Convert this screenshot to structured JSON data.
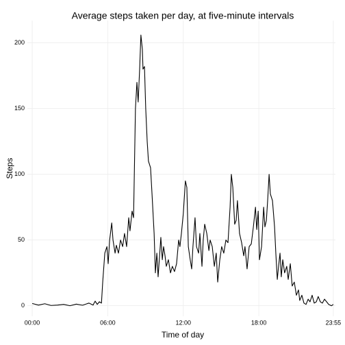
{
  "chart_data": {
    "type": "line",
    "title": "Average steps taken per day, at five-minute intervals",
    "xlabel": "Time of day",
    "ylabel": "Steps",
    "color": "#000000",
    "grid": true,
    "x": [
      0,
      30,
      60,
      90,
      120,
      150,
      180,
      210,
      240,
      270,
      290,
      300,
      310,
      320,
      330,
      336,
      346,
      356,
      362,
      369,
      379,
      385,
      395,
      401,
      411,
      421,
      431,
      440,
      450,
      460,
      466,
      476,
      483,
      492,
      499,
      505,
      512,
      518,
      525,
      528,
      535,
      541,
      548,
      554,
      564,
      571,
      581,
      587,
      594,
      600,
      607,
      613,
      620,
      626,
      633,
      639,
      649,
      659,
      668,
      678,
      688,
      698,
      704,
      711,
      720,
      730,
      737,
      744,
      753,
      760,
      766,
      776,
      783,
      793,
      799,
      809,
      815,
      822,
      832,
      842,
      848,
      858,
      868,
      877,
      884,
      894,
      903,
      913,
      923,
      933,
      943,
      949,
      956,
      965,
      972,
      978,
      988,
      998,
      1008,
      1014,
      1024,
      1034,
      1044,
      1054,
      1064,
      1070,
      1077,
      1083,
      1093,
      1103,
      1109,
      1116,
      1122,
      1129,
      1135,
      1145,
      1155,
      1161,
      1168,
      1174,
      1181,
      1187,
      1194,
      1203,
      1213,
      1220,
      1230,
      1239,
      1249,
      1259,
      1269,
      1275,
      1285,
      1295,
      1305,
      1315,
      1324,
      1334,
      1344,
      1354,
      1363,
      1373,
      1383,
      1393,
      1403,
      1413,
      1426,
      1435
    ],
    "y": [
      1.7,
      0.5,
      1.5,
      0.2,
      0.5,
      1,
      0,
      1.2,
      0.4,
      2,
      0.5,
      3.5,
      1,
      3,
      2,
      18,
      40,
      45,
      32,
      50,
      63,
      50,
      40,
      46,
      40,
      50,
      45,
      55,
      45,
      67,
      57,
      72,
      67,
      150,
      170,
      155,
      180,
      206,
      195,
      180,
      182,
      150,
      125,
      110,
      105,
      85,
      55,
      25,
      40,
      22,
      38,
      52,
      35,
      45,
      38,
      30,
      35,
      25,
      30,
      26,
      32,
      50,
      45,
      55,
      70,
      95,
      90,
      45,
      35,
      28,
      45,
      67,
      45,
      40,
      55,
      30,
      50,
      62,
      55,
      42,
      50,
      45,
      30,
      40,
      18,
      35,
      45,
      40,
      50,
      48,
      75,
      100,
      90,
      62,
      65,
      80,
      55,
      48,
      38,
      45,
      28,
      45,
      47,
      60,
      75,
      58,
      72,
      35,
      45,
      75,
      60,
      65,
      80,
      100,
      85,
      80,
      60,
      40,
      20,
      30,
      40,
      22,
      35,
      25,
      30,
      20,
      32,
      15,
      18,
      8,
      12,
      4,
      8,
      2,
      1,
      5,
      3,
      8,
      2,
      3,
      7,
      3,
      2,
      5,
      3,
      1,
      0,
      1
    ],
    "xlim": [
      -23,
      1445
    ],
    "ylim": [
      -8,
      217
    ],
    "xticks": [
      {
        "value": 0,
        "label": "00:00"
      },
      {
        "value": 360,
        "label": "06:00"
      },
      {
        "value": 720,
        "label": "12:00"
      },
      {
        "value": 1080,
        "label": "18:00"
      },
      {
        "value": 1435,
        "label": "23:55"
      }
    ],
    "yticks": [
      0,
      50,
      100,
      150,
      200
    ]
  }
}
